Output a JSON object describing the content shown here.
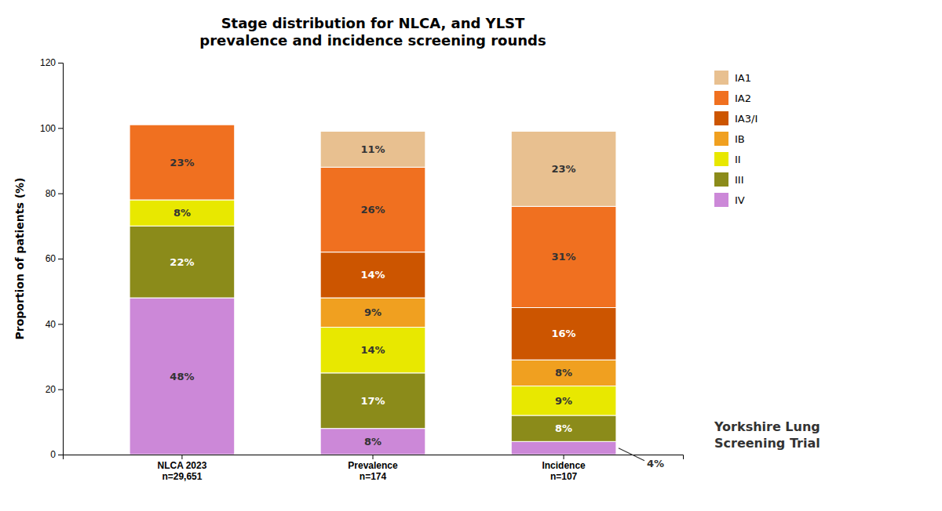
{
  "chart_data": {
    "type": "bar",
    "stacked": true,
    "data_labels": true,
    "title": "Stage distribution for NLCA, and YLST\nprevalence and incidence screening rounds",
    "y_label": "Proportion of patients (%)",
    "categories": [
      "NLCA 2023\nn=29,651",
      "Prevalence\nn=174",
      "Incidence\nn=107"
    ],
    "series": [
      {
        "name": "IV",
        "color": "#cc88d8",
        "values": [
          48,
          8,
          4
        ],
        "value_labels": [
          "48%",
          "8%",
          null
        ]
      },
      {
        "name": "III",
        "color": "#8b8b1a",
        "values": [
          22,
          17,
          8
        ],
        "value_labels": [
          "22%",
          "17%",
          "8%"
        ]
      },
      {
        "name": "II",
        "color": "#e8e800",
        "values": [
          8,
          14,
          9
        ],
        "value_labels": [
          "8%",
          "14%",
          "9%"
        ]
      },
      {
        "name": "IB",
        "color": "#f0a020",
        "values": [
          0,
          9,
          8
        ],
        "value_labels": [
          null,
          "9%",
          "8%"
        ]
      },
      {
        "name": "IA3/I",
        "color": "#cc5500",
        "values": [
          0,
          14,
          16
        ],
        "value_labels": [
          null,
          "14%",
          "16%"
        ]
      },
      {
        "name": "IA2",
        "color": "#f07020",
        "values": [
          23,
          26,
          31
        ],
        "value_labels": [
          "23%",
          "26%",
          "31%"
        ]
      },
      {
        "name": "IA1",
        "color": "#e8c090",
        "values": [
          0,
          11,
          23
        ],
        "value_labels": [
          null,
          "11%",
          "23%"
        ]
      }
    ],
    "annotations": [
      {
        "text": "4%",
        "series": "IV",
        "category": "Incidence\nn=107"
      },
      {
        "text": "Yorkshire Lung\nScreening Trial"
      }
    ],
    "ylim": [
      0,
      120
    ],
    "yticks": [
      0,
      20,
      40,
      60,
      80,
      100,
      120
    ],
    "grid": false,
    "legend": "right"
  }
}
